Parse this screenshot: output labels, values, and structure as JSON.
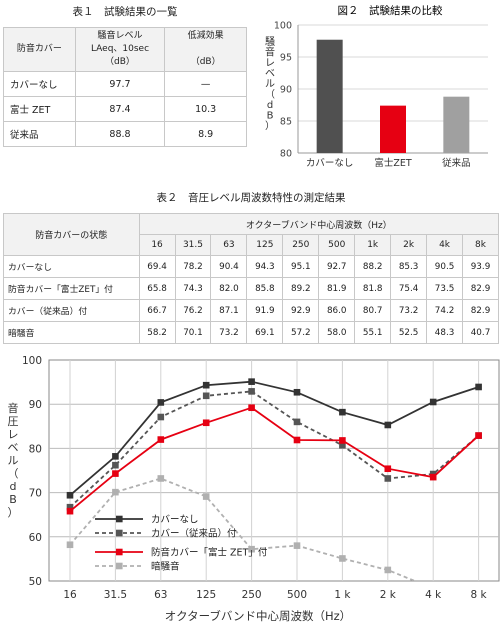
{
  "table1": {
    "caption": "表１　試験結果の一覧",
    "headers": [
      "防音カバー",
      "騒音レベル",
      "LAeq、10sec",
      "（dB）",
      "低減効果",
      "（dB）"
    ],
    "rows": [
      {
        "name": "カバーなし",
        "level": "97.7",
        "reduction": "—"
      },
      {
        "name": "富士 ZET",
        "level": "87.4",
        "reduction": "10.3"
      },
      {
        "name": "従来品",
        "level": "88.8",
        "reduction": "8.9"
      }
    ]
  },
  "table2": {
    "caption": "表２　音圧レベル周波数特性の測定結果",
    "state_header": "防音カバーの状態",
    "group_header": "オクターブバンド中心周波数（Hz）",
    "freqs": [
      "16",
      "31.5",
      "63",
      "125",
      "250",
      "500",
      "1k",
      "2k",
      "4k",
      "8k"
    ],
    "rows": [
      {
        "name": "カバーなし",
        "values": [
          "69.4",
          "78.2",
          "90.4",
          "94.3",
          "95.1",
          "92.7",
          "88.2",
          "85.3",
          "90.5",
          "93.9"
        ]
      },
      {
        "name": "防音カバー「富士ZET」付",
        "values": [
          "65.8",
          "74.3",
          "82.0",
          "85.8",
          "89.2",
          "81.9",
          "81.8",
          "75.4",
          "73.5",
          "82.9"
        ]
      },
      {
        "name": "カバー（従来品）付",
        "values": [
          "66.7",
          "76.2",
          "87.1",
          "91.9",
          "92.9",
          "86.0",
          "80.7",
          "73.2",
          "74.2",
          "82.9"
        ]
      },
      {
        "name": "暗騒音",
        "values": [
          "58.2",
          "70.1",
          "73.2",
          "69.1",
          "57.2",
          "58.0",
          "55.1",
          "52.5",
          "48.3",
          "40.7"
        ]
      }
    ]
  },
  "chart_data": [
    {
      "type": "bar",
      "title": "図２　試験結果の比較",
      "categories": [
        "カバーなし",
        "富士ZET",
        "従来品"
      ],
      "values": [
        97.7,
        87.4,
        88.8
      ],
      "colors": [
        "#505050",
        "#e60012",
        "#a0a0a0"
      ],
      "ylabel": "騒音レベル（dB）",
      "ylim": [
        80,
        100
      ],
      "yticks": [
        "80",
        "85",
        "90",
        "95",
        "100"
      ],
      "grid": true
    },
    {
      "type": "line",
      "xlabel": "オクターブバンド中心周波数（Hz）",
      "ylabel": "音圧レベル（dB）",
      "categories": [
        "16",
        "31.5",
        "63",
        "125",
        "250",
        "500",
        "1 k",
        "2 k",
        "4 k",
        "8 k"
      ],
      "ylim": [
        50,
        100
      ],
      "yticks": [
        "50",
        "60",
        "70",
        "80",
        "90",
        "100"
      ],
      "grid": true,
      "series": [
        {
          "name": "カバーなし",
          "color": "#333333",
          "dash": false,
          "values": [
            69.4,
            78.2,
            90.4,
            94.3,
            95.1,
            92.7,
            88.2,
            85.3,
            90.5,
            93.9
          ]
        },
        {
          "name": "カバー（従来品）付",
          "color": "#555555",
          "dash": true,
          "values": [
            66.7,
            76.2,
            87.1,
            91.9,
            92.9,
            86.0,
            80.7,
            73.2,
            74.2,
            82.9
          ]
        },
        {
          "name": "防音カバー「富士 ZET」付",
          "color": "#e60012",
          "dash": false,
          "values": [
            65.8,
            74.3,
            82.0,
            85.8,
            89.2,
            81.9,
            81.8,
            75.4,
            73.5,
            82.9
          ]
        },
        {
          "name": "暗騒音",
          "color": "#b0b0b0",
          "dash": true,
          "values": [
            58.2,
            70.1,
            73.2,
            69.1,
            57.2,
            58.0,
            55.1,
            52.5,
            48.3,
            40.7
          ]
        }
      ]
    }
  ]
}
